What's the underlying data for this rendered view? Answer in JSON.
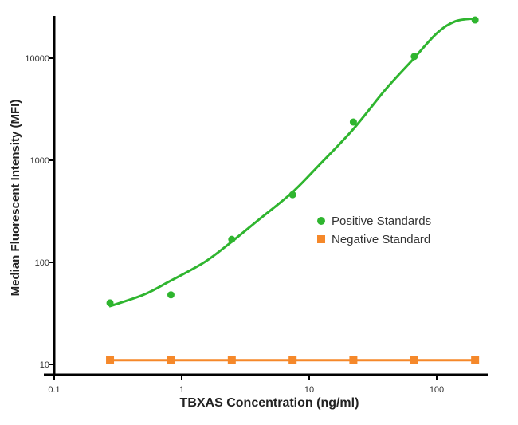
{
  "chart_data": {
    "type": "scatter",
    "title": "",
    "xlabel": "TBXAS Concentration (ng/ml)",
    "ylabel": "Median Fluorescent Intensity (MFI)",
    "xscale": "log",
    "yscale": "log",
    "xlim": [
      0.1,
      245
    ],
    "ylim": [
      8,
      25000
    ],
    "x_ticks": [
      {
        "value": 0.1,
        "label": "0.1"
      },
      {
        "value": 1,
        "label": "1"
      },
      {
        "value": 10,
        "label": "10"
      },
      {
        "value": 100,
        "label": "100"
      }
    ],
    "y_ticks": [
      {
        "value": 10,
        "label": "10"
      },
      {
        "value": 100,
        "label": "100"
      },
      {
        "value": 1000,
        "label": "1000"
      },
      {
        "value": 10000,
        "label": "10000"
      }
    ],
    "grid": false,
    "legend_position": "center-right",
    "series": [
      {
        "name": "Positive Standards",
        "color": "#2fb52f",
        "marker": "circle",
        "x": [
          0.274,
          0.823,
          2.47,
          7.41,
          22.2,
          66.7,
          200
        ],
        "y": [
          40,
          48,
          168,
          460,
          2370,
          10400,
          23700
        ],
        "fit_curve": {
          "x": [
            0.27,
            0.5,
            0.8,
            1.5,
            2.4,
            4,
            7.3,
            12,
            22,
            40,
            64,
            100,
            140,
            200
          ],
          "y": [
            37,
            48,
            65,
            100,
            155,
            260,
            480,
            900,
            2000,
            5000,
            9500,
            17500,
            23000,
            24500
          ]
        }
      },
      {
        "name": "Negative Standard",
        "color": "#f5882a",
        "marker": "square",
        "x": [
          0.274,
          0.823,
          2.47,
          7.41,
          22.2,
          66.7,
          200
        ],
        "y": [
          11,
          11,
          11,
          11,
          11,
          11,
          11
        ]
      }
    ]
  }
}
